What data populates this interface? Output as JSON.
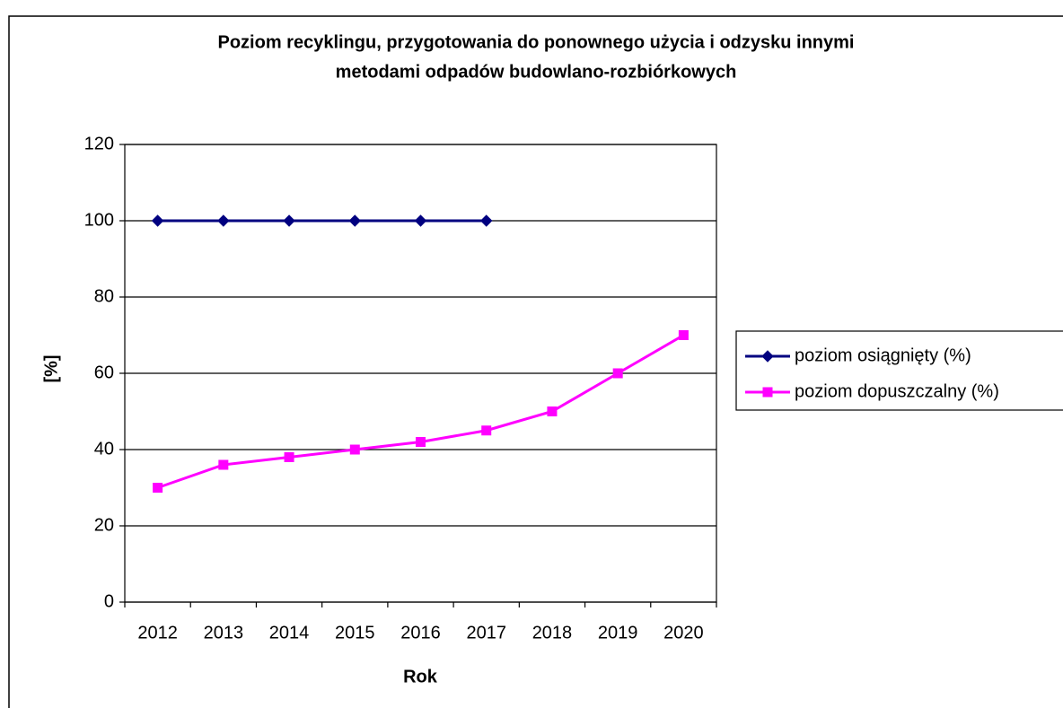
{
  "chart_data": {
    "type": "line",
    "title": [
      "Poziom recyklingu, przygotowania do ponownego użycia i odzysku innymi",
      "metodami odpadów budowlano-rozbiórkowych"
    ],
    "x_label": "Rok",
    "y_label": "[%]",
    "categories": [
      "2012",
      "2013",
      "2014",
      "2015",
      "2016",
      "2017",
      "2018",
      "2019",
      "2020"
    ],
    "series": [
      {
        "name": "poziom osiągnięty (%)",
        "color": "#000080",
        "marker": "diamond",
        "values": [
          100,
          100,
          100,
          100,
          100,
          100,
          null,
          null,
          null
        ]
      },
      {
        "name": "poziom dopuszczalny (%)",
        "color": "#ff00ff",
        "marker": "square",
        "values": [
          30,
          36,
          38,
          40,
          42,
          45,
          50,
          60,
          70
        ]
      }
    ],
    "ylim": [
      0,
      120
    ],
    "yticks": [
      0,
      20,
      40,
      60,
      80,
      100,
      120
    ],
    "grid": true,
    "legend": "right"
  }
}
